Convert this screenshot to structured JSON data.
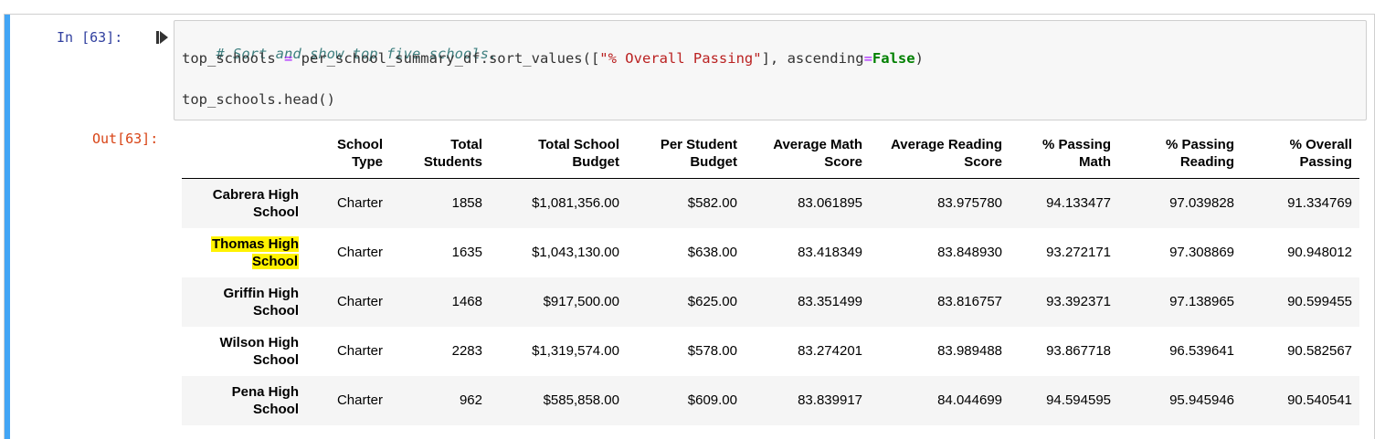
{
  "prompts": {
    "in_label": "In [63]:",
    "out_label": "Out[63]:"
  },
  "code": {
    "comment": "# Sort and show top five schools.",
    "line2_var": "top_schools ",
    "line2_eq": "=",
    "line2_mid": " per_school_summary_df.sort_values([",
    "line2_str": "\"% Overall Passing\"",
    "line2_mid2": "], ascending",
    "line2_eq2": "=",
    "line2_kw": "False",
    "line2_end": ")",
    "line3": "top_schools.head()"
  },
  "table": {
    "headers": [
      {
        "l1": "School",
        "l2": "Type"
      },
      {
        "l1": "Total",
        "l2": "Students"
      },
      {
        "l1": "Total School",
        "l2": "Budget"
      },
      {
        "l1": "Per Student",
        "l2": "Budget"
      },
      {
        "l1": "Average Math",
        "l2": "Score"
      },
      {
        "l1": "Average Reading",
        "l2": "Score"
      },
      {
        "l1": "% Passing",
        "l2": "Math"
      },
      {
        "l1": "% Passing",
        "l2": "Reading"
      },
      {
        "l1": "% Overall",
        "l2": "Passing"
      }
    ],
    "rows": [
      {
        "l1": "Cabrera High",
        "l2": "School",
        "cells": [
          "Charter",
          "1858",
          "$1,081,356.00",
          "$582.00",
          "83.061895",
          "83.975780",
          "94.133477",
          "97.039828",
          "91.334769"
        ]
      },
      {
        "l1": "Thomas High",
        "l2": "School",
        "cells": [
          "Charter",
          "1635",
          "$1,043,130.00",
          "$638.00",
          "83.418349",
          "83.848930",
          "93.272171",
          "97.308869",
          "90.948012"
        ]
      },
      {
        "l1": "Griffin High",
        "l2": "School",
        "cells": [
          "Charter",
          "1468",
          "$917,500.00",
          "$625.00",
          "83.351499",
          "83.816757",
          "93.392371",
          "97.138965",
          "90.599455"
        ]
      },
      {
        "l1": "Wilson High",
        "l2": "School",
        "cells": [
          "Charter",
          "2283",
          "$1,319,574.00",
          "$578.00",
          "83.274201",
          "83.989488",
          "93.867718",
          "96.539641",
          "90.582567"
        ]
      },
      {
        "l1": "Pena High",
        "l2": "School",
        "cells": [
          "Charter",
          "962",
          "$585,858.00",
          "$609.00",
          "83.839917",
          "84.044699",
          "94.594595",
          "95.945946",
          "90.540541"
        ]
      }
    ]
  },
  "icons": {
    "run": "step-forward-icon"
  },
  "colors": {
    "cell_bar": "#42a5f5",
    "highlight": "#fff200"
  }
}
